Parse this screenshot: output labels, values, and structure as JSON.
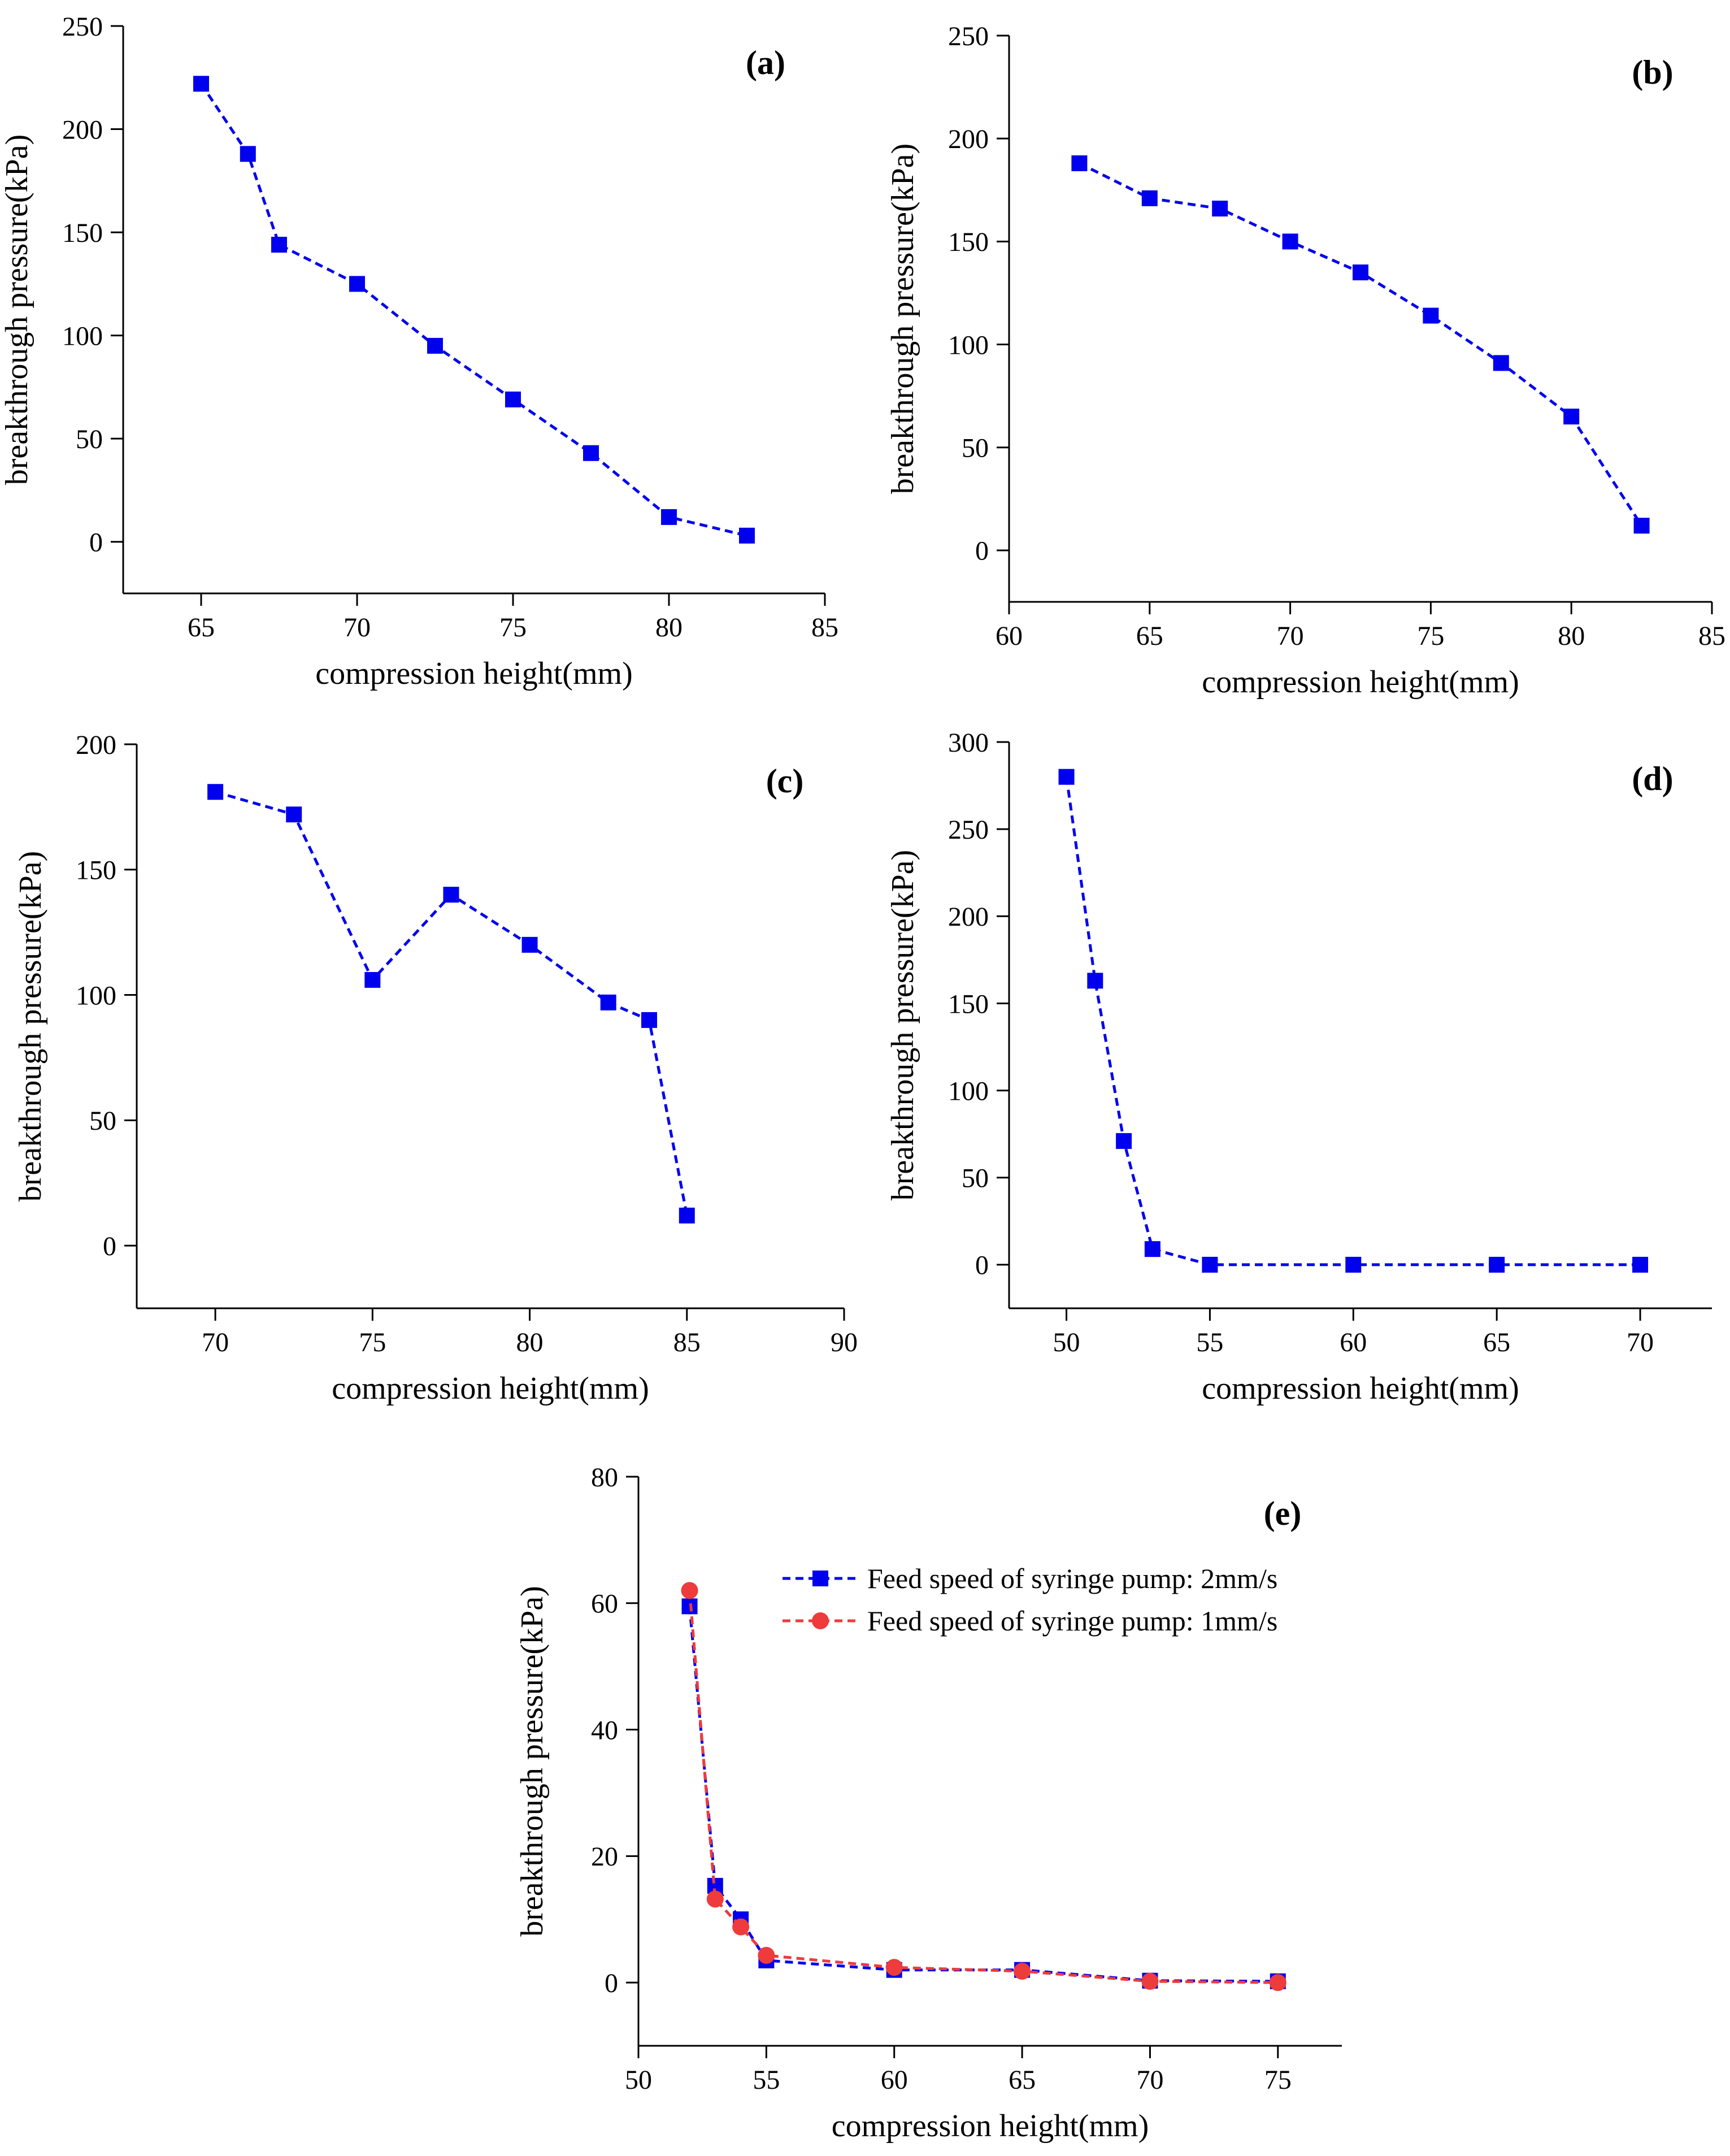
{
  "chart_data": [
    {
      "panel": "(a)",
      "type": "line",
      "xlabel": "compression height(mm)",
      "ylabel": "breakthrough pressure(kPa)",
      "xlim": [
        62.5,
        85
      ],
      "ylim": [
        -25,
        250
      ],
      "xticks": [
        65,
        70,
        75,
        80,
        85
      ],
      "yticks": [
        0,
        50,
        100,
        150,
        200,
        250
      ],
      "series": [
        {
          "name": "",
          "color": "#0000ee",
          "marker": "square",
          "x": [
            65,
            66.5,
            67.5,
            70,
            72.5,
            75,
            77.5,
            80,
            82.5
          ],
          "y": [
            222,
            188,
            144,
            125,
            95,
            69,
            43,
            12,
            3
          ]
        }
      ]
    },
    {
      "panel": "(b)",
      "type": "line",
      "xlabel": "compression height(mm)",
      "ylabel": "breakthrough pressure(kPa)",
      "xlim": [
        60,
        85
      ],
      "ylim": [
        -25,
        250
      ],
      "xticks": [
        60,
        65,
        70,
        75,
        80,
        85
      ],
      "yticks": [
        0,
        50,
        100,
        150,
        200,
        250
      ],
      "series": [
        {
          "name": "",
          "color": "#0000ee",
          "marker": "square",
          "x": [
            62.5,
            65,
            67.5,
            70,
            72.5,
            75,
            77.5,
            80,
            82.5
          ],
          "y": [
            188,
            171,
            166,
            150,
            135,
            114,
            91,
            65,
            12
          ]
        }
      ]
    },
    {
      "panel": "(c)",
      "type": "line",
      "xlabel": "compression height(mm)",
      "ylabel": "breakthrough pressure(kPa)",
      "xlim": [
        67.5,
        90
      ],
      "ylim": [
        -25,
        200
      ],
      "xticks": [
        70,
        75,
        80,
        85,
        90
      ],
      "yticks": [
        0,
        50,
        100,
        150,
        200
      ],
      "series": [
        {
          "name": "",
          "color": "#0000ee",
          "marker": "square",
          "x": [
            70,
            72.5,
            75,
            77.5,
            80,
            82.5,
            83.8,
            85
          ],
          "y": [
            181,
            172,
            106,
            140,
            120,
            97,
            90,
            12
          ]
        }
      ]
    },
    {
      "panel": "(d)",
      "type": "line",
      "xlabel": "compression height(mm)",
      "ylabel": "breakthrough pressure(kPa)",
      "xlim": [
        48,
        72.5
      ],
      "ylim": [
        -25,
        300
      ],
      "xticks": [
        50,
        55,
        60,
        65,
        70
      ],
      "yticks": [
        0,
        50,
        100,
        150,
        200,
        250,
        300
      ],
      "series": [
        {
          "name": "",
          "color": "#0000ee",
          "marker": "square",
          "x": [
            50,
            51,
            52,
            53,
            55,
            60,
            65,
            70
          ],
          "y": [
            280,
            163,
            71,
            9,
            0,
            0,
            0,
            0
          ]
        }
      ]
    },
    {
      "panel": "(e)",
      "type": "line",
      "xlabel": "compression height(mm)",
      "ylabel": "breakthrough pressure(kPa)",
      "xlim": [
        50,
        77.5
      ],
      "ylim": [
        -10,
        80
      ],
      "xticks": [
        50,
        55,
        60,
        65,
        70,
        75
      ],
      "yticks": [
        0,
        20,
        40,
        60,
        80
      ],
      "legend": "top-right",
      "series": [
        {
          "name": "Feed speed of syringe pump: 2mm/s",
          "color": "#0000ee",
          "marker": "square",
          "x": [
            52,
            53,
            54,
            55,
            60,
            65,
            70,
            75
          ],
          "y": [
            59.5,
            15.3,
            10,
            3.5,
            2,
            2,
            0.3,
            0.2
          ]
        },
        {
          "name": "Feed speed of syringe pump: 1mm/s",
          "color": "#ee3b3b",
          "marker": "circle",
          "x": [
            52,
            53,
            54,
            55,
            60,
            65,
            70,
            75
          ],
          "y": [
            62,
            13.2,
            8.8,
            4.3,
            2.4,
            1.8,
            0.2,
            0
          ]
        }
      ]
    }
  ]
}
